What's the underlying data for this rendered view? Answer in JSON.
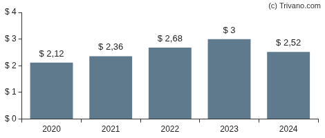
{
  "chart_data": {
    "type": "bar",
    "annotation": "(c) Trivano.com",
    "categories": [
      "2020",
      "2021",
      "2022",
      "2023",
      "2024"
    ],
    "values": [
      2.12,
      2.36,
      2.68,
      3,
      2.52
    ],
    "value_labels": [
      "$ 2,12",
      "$ 2,36",
      "$ 2,68",
      "$ 3",
      "$ 2,52"
    ],
    "data_labels": true,
    "color": "#5f7a8c",
    "ylim": [
      0,
      4
    ],
    "yticks": [
      {
        "value": 0,
        "label": "$ 0"
      },
      {
        "value": 1,
        "label": "$ 1"
      },
      {
        "value": 2,
        "label": "$ 2"
      },
      {
        "value": 3,
        "label": "$ 3"
      },
      {
        "value": 4,
        "label": "$ 4"
      }
    ],
    "grid": false
  }
}
